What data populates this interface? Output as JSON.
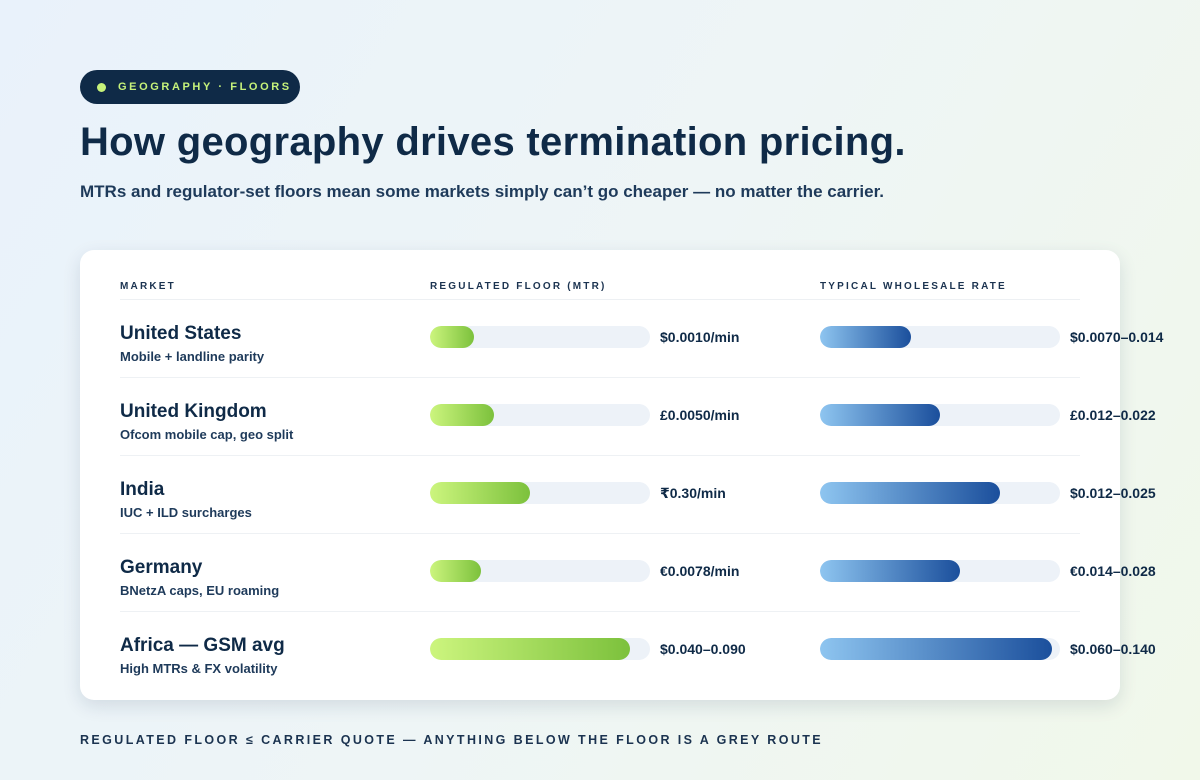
{
  "badge": {
    "label": "GEOGRAPHY · FLOORS"
  },
  "title": "How geography drives termination pricing.",
  "subtitle": "MTRs and regulator-set floors mean some markets simply can’t go cheaper — no matter the carrier.",
  "table": {
    "headers": {
      "market": "MARKET",
      "floor": "REGULATED FLOOR (MTR)",
      "rate": "TYPICAL WHOLESALE RATE"
    },
    "rows": [
      {
        "name": "United States",
        "note": "Mobile + landline parity",
        "floor_label": "$0.0010/min",
        "floor_fraction": 0.2,
        "rate_label": "$0.0070–0.014",
        "rate_fraction": 0.38
      },
      {
        "name": "United Kingdom",
        "note": "Ofcom mobile cap, geo split",
        "floor_label": "£0.0050/min",
        "floor_fraction": 0.29,
        "rate_label": "£0.012–0.022",
        "rate_fraction": 0.5
      },
      {
        "name": "India",
        "note": "IUC + ILD surcharges",
        "floor_label": "₹0.30/min",
        "floor_fraction": 0.455,
        "rate_label": "$0.012–0.025",
        "rate_fraction": 0.75
      },
      {
        "name": "Germany",
        "note": "BNetzA caps, EU roaming",
        "floor_label": "€0.0078/min",
        "floor_fraction": 0.23,
        "rate_label": "€0.014–0.028",
        "rate_fraction": 0.583
      },
      {
        "name": "Africa — GSM avg",
        "note": "High MTRs & FX volatility",
        "floor_label": "$0.040–0.090",
        "floor_fraction": 0.91,
        "rate_label": "$0.060–0.140",
        "rate_fraction": 0.967
      }
    ]
  },
  "footer": "REGULATED FLOOR ≤ CARRIER QUOTE — ANYTHING BELOW THE FLOOR IS A GREY ROUTE"
}
